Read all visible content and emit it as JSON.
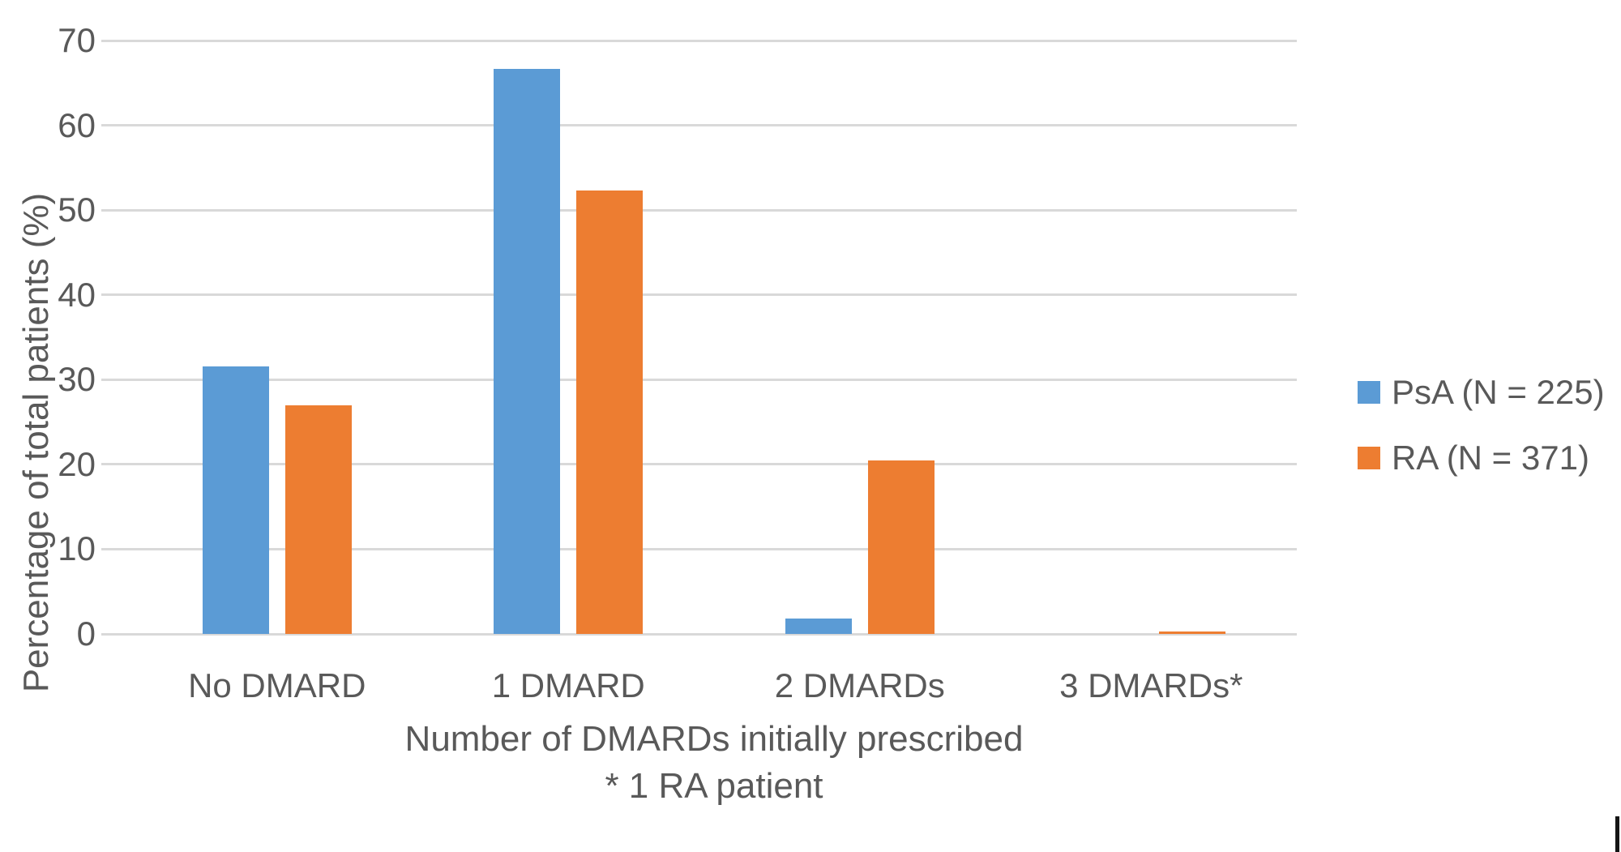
{
  "chart_data": {
    "type": "bar",
    "title": "",
    "categories": [
      "No DMARD",
      "1 DMARD",
      "2 DMARDs",
      "3 DMARDs*"
    ],
    "series": [
      {
        "name": "PsA (N = 225)",
        "color": "#5B9BD5",
        "values": [
          31.6,
          66.7,
          1.8,
          0
        ]
      },
      {
        "name": "RA (N = 371)",
        "color": "#ED7D31",
        "values": [
          27.0,
          52.3,
          20.5,
          0.3
        ]
      }
    ],
    "xlabel": "Number of DMARDs initially prescribed",
    "xlabel_note": "* 1 RA patient",
    "ylabel": "Percentage of total patients (%)",
    "ylim": [
      0,
      70
    ],
    "yticks": [
      0,
      10,
      20,
      30,
      40,
      50,
      60,
      70
    ],
    "grid": true,
    "legend_position": "right",
    "colors": {
      "gridline": "#D9D9D9",
      "text": "#595959",
      "background": "#FFFFFF",
      "edge_mark": "#151515"
    }
  }
}
